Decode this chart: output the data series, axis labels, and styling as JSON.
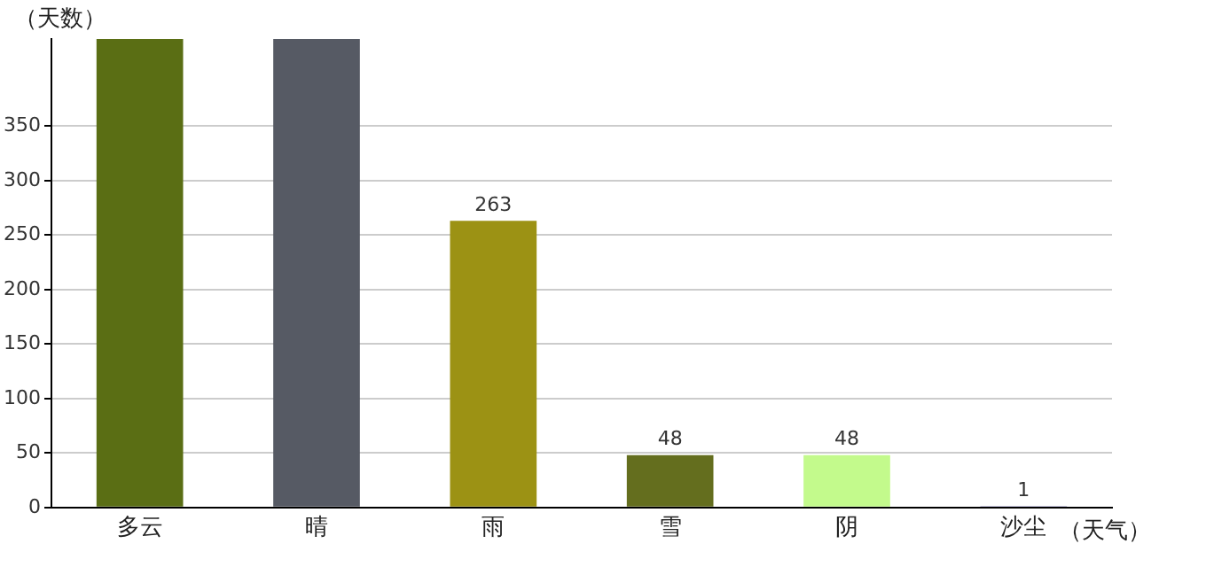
{
  "chart_data": {
    "type": "bar",
    "xlabel": "（天气）",
    "ylabel": "（天数）",
    "categories": [
      "多云",
      "晴",
      "雨",
      "雪",
      "阴",
      "沙尘"
    ],
    "values": [
      430,
      430,
      263,
      48,
      48,
      1
    ],
    "colors": [
      "#5a6e14",
      "#565a64",
      "#9c9214",
      "#646e1e",
      "#c3fa8c",
      "#1e1478"
    ],
    "value_labels": [
      null,
      null,
      "263",
      "48",
      "48",
      "1"
    ],
    "ylim": [
      0,
      430
    ],
    "yticks": [
      0,
      50,
      100,
      150,
      200,
      250,
      300,
      350
    ],
    "grid": "y",
    "legend": false
  }
}
